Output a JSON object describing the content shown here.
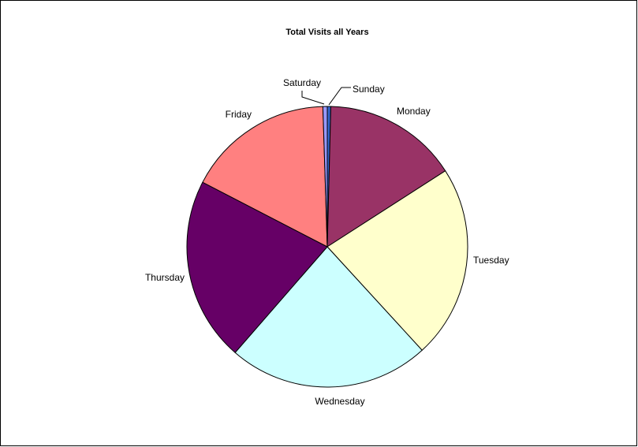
{
  "chart_data": {
    "type": "pie",
    "title": "Total Visits all Years",
    "slices": [
      {
        "label": "Sunday",
        "value": 0.4,
        "color": "#3366cc"
      },
      {
        "label": "Monday",
        "value": 15.5,
        "color": "#993366"
      },
      {
        "label": "Tuesday",
        "value": 22.3,
        "color": "#ffffcc"
      },
      {
        "label": "Wednesday",
        "value": 23.2,
        "color": "#ccffff"
      },
      {
        "label": "Thursday",
        "value": 21.2,
        "color": "#660066"
      },
      {
        "label": "Friday",
        "value": 16.9,
        "color": "#ff8080"
      },
      {
        "label": "Saturday",
        "value": 0.5,
        "color": "#9999ff"
      }
    ],
    "start_angle_deg": 0,
    "direction": "clockwise",
    "legend": "none"
  }
}
